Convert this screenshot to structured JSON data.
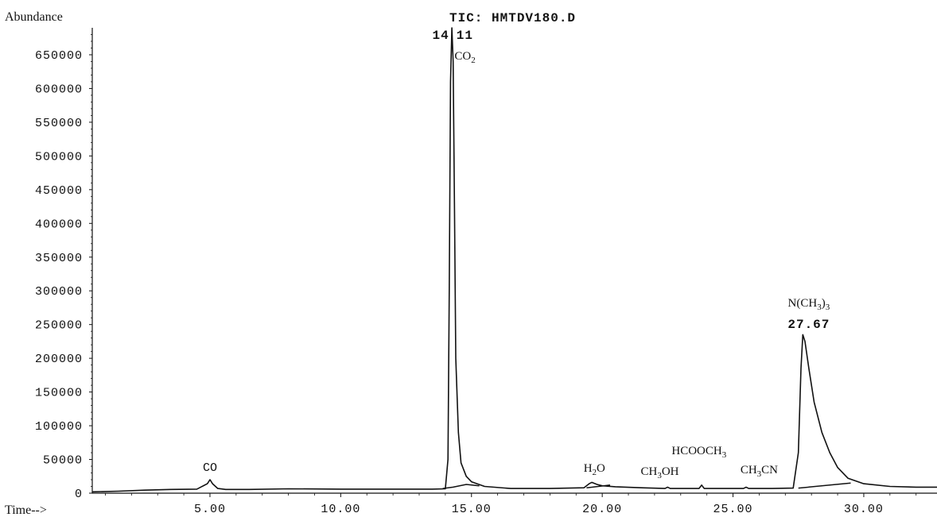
{
  "chart_data": {
    "type": "line",
    "title": "TIC: HMTDV180.D",
    "ylabel": "Abundance",
    "xlabel": "Time-->",
    "xlim": [
      0.5,
      32.8
    ],
    "ylim": [
      0,
      690000
    ],
    "x_ticks": [
      5.0,
      10.0,
      15.0,
      20.0,
      25.0,
      30.0
    ],
    "x_tick_labels": [
      "5.00",
      "10.00",
      "15.00",
      "20.00",
      "25.00",
      "30.00"
    ],
    "y_ticks": [
      0,
      50000,
      100000,
      150000,
      200000,
      250000,
      300000,
      350000,
      400000,
      450000,
      500000,
      550000,
      600000,
      650000
    ],
    "y_tick_labels": [
      "0",
      "50000",
      "100000",
      "150000",
      "200000",
      "250000",
      "300000",
      "350000",
      "400000",
      "450000",
      "500000",
      "550000",
      "600000",
      "650000"
    ],
    "grid": false,
    "series": [
      {
        "x": [
          0.5,
          1.5,
          2.5,
          3.5,
          4.5,
          4.9,
          5.0,
          5.1,
          5.3,
          5.6,
          6.5,
          8.0,
          10.0,
          12.0,
          13.5,
          14.0,
          14.1,
          14.15,
          14.2,
          14.25,
          14.3,
          14.35,
          14.4,
          14.5,
          14.6,
          14.8,
          15.0,
          15.5,
          16.5,
          18.0,
          19.3,
          19.5,
          19.6,
          19.8,
          20.0,
          20.5,
          21.5,
          22.4,
          22.5,
          22.6,
          23.0,
          23.7,
          23.8,
          23.9,
          24.5,
          25.4,
          25.5,
          25.6,
          26.5,
          27.3,
          27.5,
          27.6,
          27.67,
          27.75,
          27.9,
          28.1,
          28.4,
          28.7,
          29.0,
          29.4,
          30.0,
          31.0,
          32.0,
          32.8
        ],
        "y": [
          2000,
          3000,
          4500,
          5500,
          6000,
          14000,
          20000,
          14000,
          7000,
          5500,
          5500,
          6500,
          6000,
          6000,
          6000,
          6500,
          50000,
          300000,
          610000,
          690000,
          640000,
          420000,
          200000,
          90000,
          45000,
          25000,
          17000,
          10000,
          7000,
          7000,
          8000,
          14000,
          16000,
          13000,
          11000,
          9500,
          8000,
          7000,
          9000,
          7000,
          7000,
          7000,
          12000,
          7000,
          7000,
          7000,
          9000,
          7000,
          7000,
          7500,
          60000,
          185000,
          235000,
          225000,
          185000,
          135000,
          90000,
          60000,
          38000,
          22000,
          14000,
          10000,
          9000,
          9000
        ]
      }
    ],
    "baselines": [
      {
        "x": [
          13.9,
          14.3,
          14.8,
          15.3
        ],
        "y": [
          7000,
          9000,
          13000,
          11000
        ]
      },
      {
        "x": [
          19.4,
          20.3
        ],
        "y": [
          8000,
          12000
        ]
      },
      {
        "x": [
          27.5,
          29.5
        ],
        "y": [
          7500,
          15000
        ]
      }
    ],
    "annotations": [
      {
        "text": "CO",
        "formula": [
          [
            "CO",
            false
          ]
        ],
        "x": 5.0,
        "y": 20000,
        "style": "mono"
      },
      {
        "text": "14.11",
        "left": "14",
        "right": "11",
        "x": 14.3,
        "y": 690000,
        "style": "peaknum"
      },
      {
        "text": "CO2",
        "formula": [
          [
            "CO",
            false
          ],
          [
            "2",
            true
          ]
        ],
        "x": 14.8,
        "y": 640000,
        "style": "serif"
      },
      {
        "text": "H2O",
        "formula": [
          [
            "H",
            false
          ],
          [
            "2",
            true
          ],
          [
            "O",
            false
          ]
        ],
        "x": 19.7,
        "y": 16000,
        "style": "serif"
      },
      {
        "text": "CH3OH",
        "formula": [
          [
            "CH",
            false
          ],
          [
            "3",
            true
          ],
          [
            "OH",
            false
          ]
        ],
        "x": 22.2,
        "y": 9000,
        "style": "serif"
      },
      {
        "text": "HCOOCH3",
        "formula": [
          [
            "HCOOCH",
            false
          ],
          [
            "3",
            true
          ]
        ],
        "x": 23.7,
        "y": 45000,
        "style": "serif"
      },
      {
        "text": "CH3CN",
        "formula": [
          [
            "CH",
            false
          ],
          [
            "3",
            true
          ],
          [
            "CN",
            false
          ]
        ],
        "x": 26.0,
        "y": 9000,
        "style": "serif"
      },
      {
        "text": "N(CH3)3",
        "formula": [
          [
            "N(CH",
            false
          ],
          [
            "3",
            true
          ],
          [
            ")",
            false
          ],
          [
            "3",
            true
          ]
        ],
        "x": 27.9,
        "y": 265000,
        "style": "serif"
      },
      {
        "text": "27.67",
        "x": 27.9,
        "y": 245000,
        "style": "peaknum"
      }
    ]
  }
}
